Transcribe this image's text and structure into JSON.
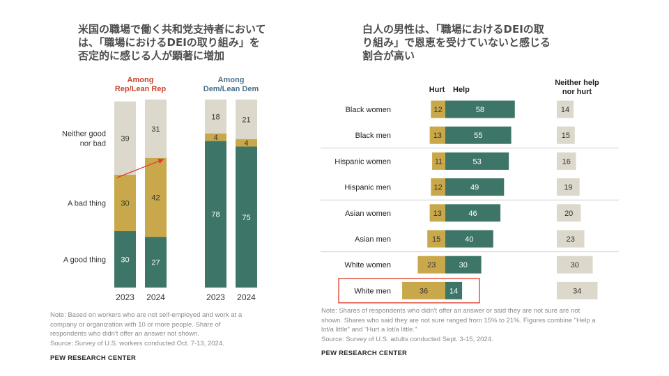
{
  "left": {
    "title_lines": [
      "米国の職場で働く共和党支持者において",
      "は、「職場におけるDEIの取り組み」を",
      "否定的に感じる人が顕著に増加"
    ],
    "notes": [
      "Note: Based on workers who are not self-employed and work at a",
      "company or organization with 10 or more people. Share of",
      "respondents who didn't offer an answer not shown.",
      "Source: Survey of U.S. workers conducted Oct. 7-13, 2024."
    ],
    "brand": "PEW RESEARCH CENTER"
  },
  "right": {
    "title_lines": [
      "白人の男性は、「職場におけるDEIの取",
      "り組み」で恩恵を受けていないと感じる",
      "割合が高い"
    ],
    "notes": [
      "Note: Shares of respondents who didn't offer an answer or said they are not sure are not",
      "shown. Shares who said they are not sure ranged from 15% to 21%. Figures combine \"Help a",
      "lot/a little\" and \"Hurt a lot/a little.\"",
      "Source: Survey of U.S. adults conducted Sept. 3-15, 2024."
    ],
    "brand": "PEW RESEARCH CENTER"
  },
  "colors": {
    "good": "#3d7668",
    "bad": "#c9a84b",
    "neither": "#dcd8cc",
    "rep_header": "#c8452e",
    "dem_header": "#4a6f8a",
    "highlight": "#e0392b",
    "arrow": "#e0392b",
    "label_light": "#ffffff",
    "label_dark": "#333333"
  },
  "chart_data": [
    {
      "type": "bar",
      "stacked": true,
      "groups": [
        {
          "header": [
            "Among",
            "Rep/Lean Rep"
          ],
          "categories": [
            "2023",
            "2024"
          ]
        },
        {
          "header": [
            "Among",
            "Dem/Lean Dem"
          ],
          "categories": [
            "2023",
            "2024"
          ]
        }
      ],
      "series": [
        {
          "name": "A good thing",
          "values": [
            30,
            27,
            78,
            75
          ]
        },
        {
          "name": "A bad thing",
          "values": [
            30,
            42,
            4,
            4
          ]
        },
        {
          "name": "Neither good nor bad",
          "label_lines": [
            "Neither good",
            "nor bad"
          ],
          "values": [
            39,
            31,
            18,
            21
          ]
        }
      ],
      "ylim": [
        0,
        100
      ],
      "annotation": "arrow indicating increase in 'A bad thing' among Rep/Lean Rep from 2023 to 2024"
    },
    {
      "type": "bar",
      "orientation": "horizontal",
      "columns": {
        "hurt": "Hurt",
        "help": "Help",
        "neither": "Neither help nor hurt",
        "neither_lines": [
          "Neither help",
          "nor hurt"
        ]
      },
      "categories": [
        "Black women",
        "Black men",
        "Hispanic women",
        "Hispanic men",
        "Asian women",
        "Asian men",
        "White women",
        "White men"
      ],
      "series": [
        {
          "name": "Hurt",
          "values": [
            12,
            13,
            11,
            12,
            13,
            15,
            23,
            36
          ]
        },
        {
          "name": "Help",
          "values": [
            58,
            55,
            53,
            49,
            46,
            40,
            30,
            14
          ]
        },
        {
          "name": "Neither help nor hurt",
          "values": [
            14,
            15,
            16,
            19,
            20,
            23,
            30,
            34
          ]
        }
      ],
      "highlighted_category": "White men"
    }
  ]
}
